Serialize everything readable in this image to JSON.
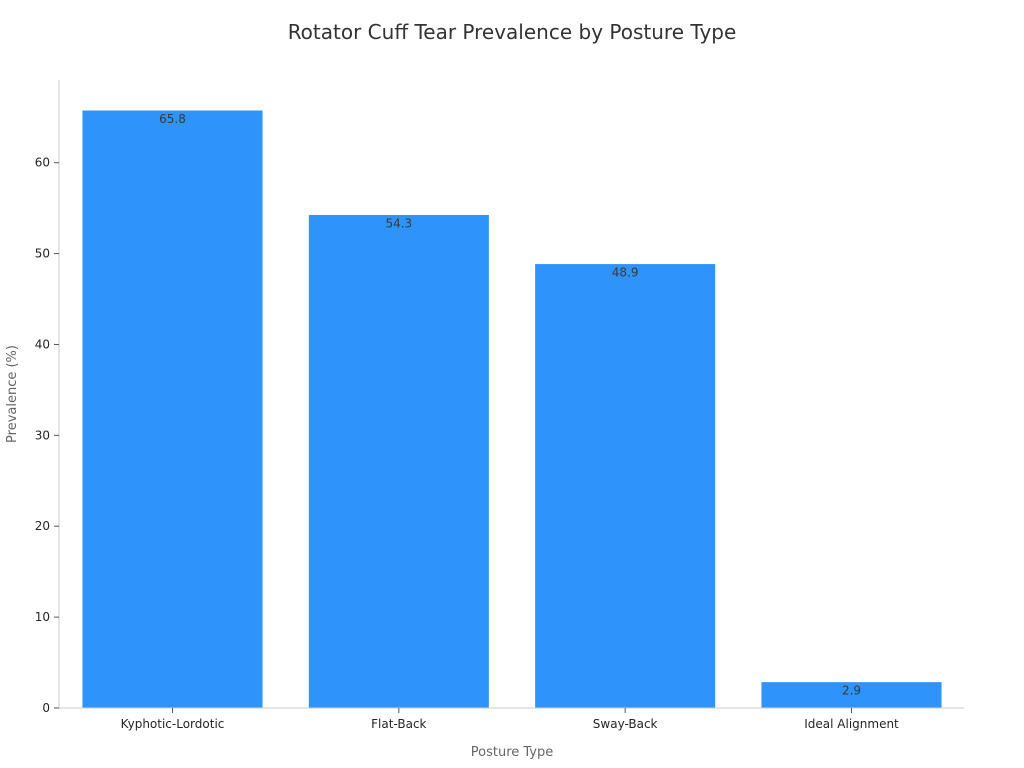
{
  "chart_data": {
    "type": "bar",
    "title": "Rotator Cuff Tear Prevalence by Posture Type",
    "xlabel": "Posture Type",
    "ylabel": "Prevalence (%)",
    "categories": [
      "Kyphotic-Lordotic",
      "Flat-Back",
      "Sway-Back",
      "Ideal Alignment"
    ],
    "values": [
      65.8,
      54.3,
      48.9,
      2.9
    ],
    "value_labels": [
      "65.8",
      "54.3",
      "48.9",
      "2.9"
    ],
    "ylim": [
      0,
      69.1
    ],
    "yticks": [
      0,
      10,
      20,
      30,
      40,
      50,
      60
    ],
    "ytick_labels": [
      "0",
      "10",
      "20",
      "30",
      "40",
      "50",
      "60"
    ],
    "bar_color": "#2e93fa",
    "grid": false,
    "legend": "none"
  }
}
